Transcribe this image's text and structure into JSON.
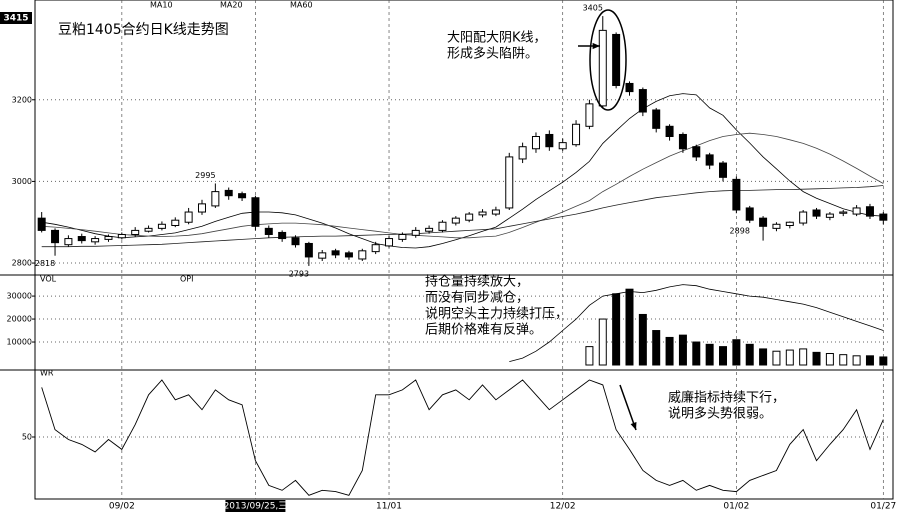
{
  "chart_data": [
    {
      "type": "candlestick",
      "title": "豆粕1405合约日K线走势图",
      "categories": [
        "",
        null,
        null,
        null,
        null,
        null,
        "09/02",
        null,
        null,
        null,
        null,
        null,
        null,
        null,
        null,
        null,
        "2013/09/25,三",
        null,
        null,
        null,
        null,
        null,
        null,
        null,
        null,
        null,
        "11/01",
        null,
        null,
        null,
        null,
        null,
        null,
        null,
        null,
        null,
        null,
        null,
        null,
        "12/02",
        null,
        null,
        null,
        null,
        null,
        null,
        null,
        null,
        null,
        null,
        null,
        null,
        "01/02",
        null,
        null,
        null,
        null,
        null,
        null,
        null,
        null,
        null,
        null,
        "01/27"
      ],
      "open": [
        2910,
        2880,
        2845,
        2865,
        2852,
        2858,
        2862,
        2870,
        2878,
        2885,
        2892,
        2900,
        2925,
        2940,
        2978,
        2970,
        2960,
        2885,
        2875,
        2862,
        2848,
        2812,
        2830,
        2825,
        2810,
        2828,
        2842,
        2858,
        2868,
        2878,
        2880,
        2898,
        2905,
        2918,
        2920,
        2935,
        3055,
        3080,
        3115,
        3080,
        3090,
        3135,
        3185,
        3360,
        3240,
        3225,
        3175,
        3135,
        3115,
        3085,
        3065,
        3045,
        3005,
        2935,
        2910,
        2885,
        2892,
        2898,
        2930,
        2912,
        2922,
        2920,
        2938,
        2920
      ],
      "high": [
        2925,
        2885,
        2868,
        2872,
        2866,
        2870,
        2875,
        2888,
        2892,
        2902,
        2912,
        2935,
        2955,
        2995,
        2985,
        2975,
        2965,
        2892,
        2880,
        2868,
        2852,
        2832,
        2835,
        2830,
        2835,
        2852,
        2866,
        2875,
        2888,
        2892,
        2905,
        2915,
        2925,
        2932,
        2938,
        3070,
        3095,
        3120,
        3125,
        3105,
        3150,
        3200,
        3405,
        3365,
        3245,
        3230,
        3180,
        3140,
        3120,
        3090,
        3070,
        3050,
        3012,
        2940,
        2915,
        2900,
        2902,
        2930,
        2935,
        2925,
        2930,
        2942,
        2945,
        2925
      ],
      "low": [
        2875,
        2818,
        2840,
        2848,
        2845,
        2852,
        2858,
        2865,
        2875,
        2880,
        2888,
        2895,
        2918,
        2935,
        2955,
        2952,
        2880,
        2862,
        2852,
        2838,
        2793,
        2805,
        2812,
        2808,
        2805,
        2822,
        2838,
        2852,
        2862,
        2872,
        2875,
        2892,
        2900,
        2912,
        2915,
        2930,
        3045,
        3070,
        3075,
        3075,
        3085,
        3128,
        3180,
        3228,
        3210,
        3160,
        3120,
        3100,
        3070,
        3050,
        3030,
        3000,
        2922,
        2898,
        2855,
        2878,
        2885,
        2892,
        2908,
        2905,
        2915,
        2915,
        2908,
        2895
      ],
      "close": [
        2880,
        2850,
        2860,
        2855,
        2860,
        2865,
        2870,
        2880,
        2885,
        2895,
        2905,
        2925,
        2945,
        2975,
        2965,
        2960,
        2890,
        2870,
        2860,
        2845,
        2815,
        2825,
        2820,
        2815,
        2830,
        2845,
        2860,
        2870,
        2880,
        2885,
        2900,
        2910,
        2920,
        2925,
        2930,
        3060,
        3085,
        3110,
        3085,
        3095,
        3140,
        3190,
        3370,
        3235,
        3220,
        3170,
        3130,
        3110,
        3080,
        3060,
        3040,
        3010,
        2930,
        2905,
        2890,
        2895,
        2900,
        2925,
        2915,
        2920,
        2925,
        2935,
        2915,
        2905
      ],
      "series": [
        {
          "name": "MA10",
          "color": "#000000",
          "values": [
            2900,
            2895,
            2888,
            2880,
            2872,
            2866,
            2862,
            2864,
            2866,
            2870,
            2874,
            2882,
            2890,
            2902,
            2912,
            2922,
            2925,
            2925,
            2923,
            2918,
            2908,
            2898,
            2886,
            2872,
            2860,
            2848,
            2842,
            2838,
            2837,
            2840,
            2848,
            2857,
            2867,
            2878,
            2888,
            2910,
            2932,
            2956,
            2977,
            2998,
            3022,
            3049,
            3093,
            3124,
            3154,
            3178,
            3196,
            3210,
            3215,
            3212,
            3180,
            3162,
            3126,
            3094,
            3060,
            3031,
            3001,
            2975,
            2959,
            2946,
            2933,
            2924,
            2917,
            2915
          ]
        },
        {
          "name": "MA20",
          "color": "#444444",
          "values": [
            2890,
            2888,
            2885,
            2882,
            2878,
            2874,
            2870,
            2868,
            2866,
            2865,
            2866,
            2868,
            2872,
            2878,
            2884,
            2890,
            2894,
            2896,
            2898,
            2898,
            2896,
            2894,
            2890,
            2886,
            2882,
            2878,
            2874,
            2870,
            2868,
            2866,
            2864,
            2862,
            2862,
            2864,
            2866,
            2875,
            2887,
            2900,
            2912,
            2925,
            2939,
            2953,
            2975,
            2993,
            3012,
            3030,
            3046,
            3062,
            3075,
            3087,
            3100,
            3110,
            3115,
            3118,
            3115,
            3110,
            3102,
            3093,
            3081,
            3067,
            3050,
            3032,
            3013,
            2995
          ]
        },
        {
          "name": "MA60",
          "color": "#222222",
          "values": [
            2840,
            2840,
            2840,
            2841,
            2841,
            2842,
            2843,
            2844,
            2845,
            2846,
            2848,
            2850,
            2852,
            2854,
            2856,
            2858,
            2860,
            2862,
            2863,
            2864,
            2865,
            2866,
            2866,
            2867,
            2868,
            2869,
            2870,
            2871,
            2872,
            2874,
            2876,
            2878,
            2880,
            2882,
            2884,
            2890,
            2896,
            2902,
            2908,
            2914,
            2920,
            2927,
            2935,
            2942,
            2948,
            2954,
            2960,
            2964,
            2968,
            2972,
            2975,
            2977,
            2978,
            2978,
            2979,
            2980,
            2980,
            2981,
            2982,
            2983,
            2984,
            2985,
            2987,
            2990
          ]
        }
      ],
      "ylim": [
        2783,
        3415
      ],
      "yticks": [
        2800,
        3000,
        3200
      ],
      "annotations": [
        [
          "大阳配大阴K线，",
          "形成多头陷阱。"
        ]
      ]
    },
    {
      "type": "bar",
      "series": [
        {
          "name": "VOL",
          "color": "#000000",
          "values": [
            null,
            null,
            null,
            null,
            null,
            null,
            null,
            null,
            null,
            null,
            null,
            null,
            null,
            null,
            null,
            null,
            null,
            null,
            null,
            null,
            null,
            null,
            null,
            null,
            null,
            null,
            null,
            null,
            null,
            null,
            null,
            null,
            null,
            null,
            null,
            null,
            null,
            null,
            null,
            null,
            null,
            8000,
            20000,
            31000,
            33000,
            22000,
            15000,
            12000,
            13000,
            10000,
            9000,
            8000,
            11000,
            9000,
            7000,
            6000,
            6500,
            7000,
            5500,
            5000,
            4500,
            4000,
            4000,
            3500
          ]
        },
        {
          "name": "OPI",
          "color": "#000000",
          "values": [
            null,
            null,
            null,
            null,
            null,
            null,
            null,
            null,
            null,
            null,
            null,
            null,
            null,
            null,
            null,
            null,
            null,
            null,
            null,
            null,
            null,
            null,
            null,
            null,
            null,
            null,
            null,
            null,
            null,
            null,
            null,
            null,
            null,
            null,
            null,
            1500,
            3000,
            6000,
            10000,
            15000,
            20000,
            26000,
            30000,
            31000,
            32000,
            31500,
            32500,
            34000,
            35000,
            34500,
            33000,
            32000,
            31000,
            30000,
            29500,
            28500,
            27500,
            26500,
            25000,
            23000,
            21000,
            19000,
            17000,
            15000
          ]
        }
      ],
      "ylim": [
        0,
        37000
      ],
      "yticks": [
        10000,
        20000,
        30000
      ],
      "annotations": [
        [
          "持仓量持续放大，",
          "而没有同步减仓，",
          "说明空头主力持续打压，",
          "后期价格难有反弹。"
        ]
      ]
    },
    {
      "type": "line",
      "series": [
        {
          "name": "WR",
          "color": "#000000",
          "values": [
            90,
            56,
            48,
            44,
            38,
            48,
            40,
            60,
            84,
            96,
            80,
            84,
            72,
            88,
            80,
            76,
            31,
            11,
            7,
            15,
            3,
            7,
            6,
            3,
            23,
            84,
            84,
            88,
            96,
            72,
            84,
            88,
            80,
            92,
            80,
            88,
            96,
            84,
            72,
            80,
            88,
            96,
            92,
            56,
            40,
            23,
            15,
            11,
            15,
            7,
            11,
            7,
            6,
            15,
            19,
            23,
            44,
            56,
            31,
            44,
            56,
            72,
            40,
            64
          ]
        }
      ],
      "ylim": [
        0,
        100
      ],
      "yticks": [
        50
      ],
      "annotations": [
        [
          "威廉指标持续下行，",
          "说明多头势很弱。"
        ]
      ]
    }
  ]
}
